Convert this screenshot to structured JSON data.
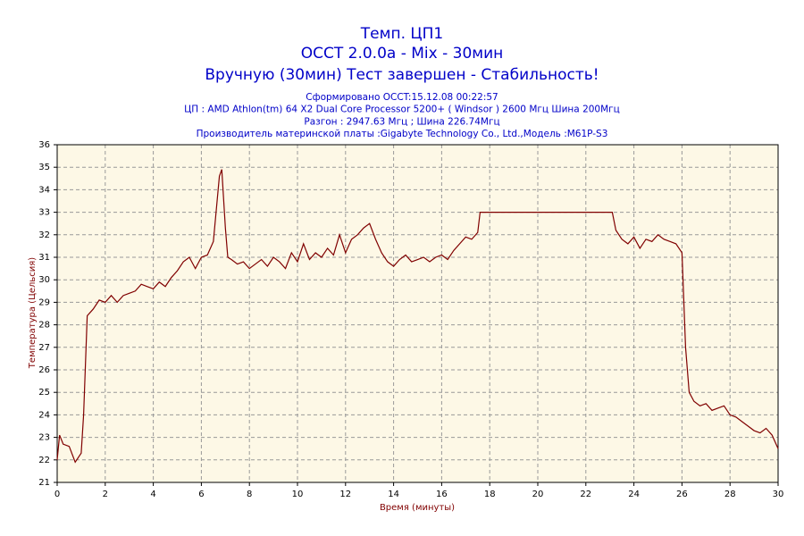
{
  "chart_data": {
    "type": "line",
    "title": [
      "Темп. ЦП1",
      "OCCT 2.0.0a - Mix - 30мин",
      "Вручную (30мин) Тест завершен - Стабильность!"
    ],
    "subtitle": [
      "Сформировано OCCT:15.12.08 00:22:57",
      "ЦП : AMD Athlon(tm) 64 X2 Dual Core Processor 5200+ ( Windsor ) 2600 Мгц Шина 200Мгц",
      "Разгон : 2947.63 Мгц ; Шина 226.74Мгц",
      "Производитель материнской платы :Gigabyte Technology Co., Ltd.,Модель :M61P-S3"
    ],
    "x_label": "Время (минуты)",
    "y_label": "Температура (Цельсия)",
    "x": [
      0,
      0.1,
      0.25,
      0.5,
      0.75,
      1.0,
      1.1,
      1.25,
      1.5,
      1.75,
      2.0,
      2.25,
      2.5,
      2.75,
      3.0,
      3.25,
      3.5,
      3.75,
      4.0,
      4.25,
      4.5,
      4.75,
      5.0,
      5.25,
      5.5,
      5.75,
      6.0,
      6.25,
      6.5,
      6.75,
      6.85,
      7.0,
      7.1,
      7.25,
      7.5,
      7.75,
      8.0,
      8.25,
      8.5,
      8.75,
      9.0,
      9.25,
      9.5,
      9.75,
      10.0,
      10.25,
      10.5,
      10.75,
      11.0,
      11.25,
      11.5,
      11.75,
      12.0,
      12.25,
      12.5,
      12.75,
      13.0,
      13.25,
      13.5,
      13.75,
      14.0,
      14.25,
      14.5,
      14.75,
      15.0,
      15.25,
      15.5,
      15.75,
      16.0,
      16.25,
      16.5,
      16.75,
      17.0,
      17.25,
      17.5,
      17.6,
      20.0,
      23.1,
      23.25,
      23.5,
      23.75,
      24.0,
      24.25,
      24.5,
      24.75,
      25.0,
      25.25,
      25.5,
      25.75,
      26.0,
      26.15,
      26.3,
      26.5,
      26.75,
      27.0,
      27.25,
      27.5,
      27.75,
      28.0,
      28.25,
      28.5,
      28.75,
      29.0,
      29.25,
      29.5,
      29.75,
      30.0
    ],
    "series": [
      {
        "name": "Темп. ЦП1",
        "color": "#800000",
        "values": [
          22.0,
          23.1,
          22.7,
          22.6,
          21.9,
          22.3,
          24.0,
          28.4,
          28.7,
          29.1,
          29.0,
          29.3,
          29.0,
          29.3,
          29.4,
          29.5,
          29.8,
          29.7,
          29.6,
          29.9,
          29.7,
          30.1,
          30.4,
          30.8,
          31.0,
          30.5,
          31.0,
          31.1,
          31.7,
          34.6,
          34.9,
          32.3,
          31.0,
          30.9,
          30.7,
          30.8,
          30.5,
          30.7,
          30.9,
          30.6,
          31.0,
          30.8,
          30.5,
          31.2,
          30.8,
          31.6,
          30.9,
          31.2,
          31.0,
          31.4,
          31.1,
          32.0,
          31.2,
          31.8,
          32.0,
          32.3,
          32.5,
          31.8,
          31.2,
          30.8,
          30.6,
          30.9,
          31.1,
          30.8,
          30.9,
          31.0,
          30.8,
          31.0,
          31.1,
          30.9,
          31.3,
          31.6,
          31.9,
          31.8,
          32.1,
          33.0,
          33.0,
          33.0,
          32.2,
          31.8,
          31.6,
          31.9,
          31.4,
          31.8,
          31.7,
          32.0,
          31.8,
          31.7,
          31.6,
          31.2,
          27.0,
          25.0,
          24.6,
          24.4,
          24.5,
          24.2,
          24.3,
          24.4,
          24.0,
          23.9,
          23.7,
          23.5,
          23.3,
          23.2,
          23.4,
          23.1,
          22.5
        ]
      }
    ],
    "xlim": [
      0,
      30
    ],
    "xticks": [
      0,
      2,
      4,
      6,
      8,
      10,
      12,
      14,
      16,
      18,
      20,
      22,
      24,
      26,
      28,
      30
    ],
    "ylim": [
      21,
      36
    ],
    "yticks": [
      21,
      22,
      23,
      24,
      25,
      26,
      27,
      28,
      29,
      30,
      31,
      32,
      33,
      34,
      35,
      36
    ],
    "grid": true
  }
}
